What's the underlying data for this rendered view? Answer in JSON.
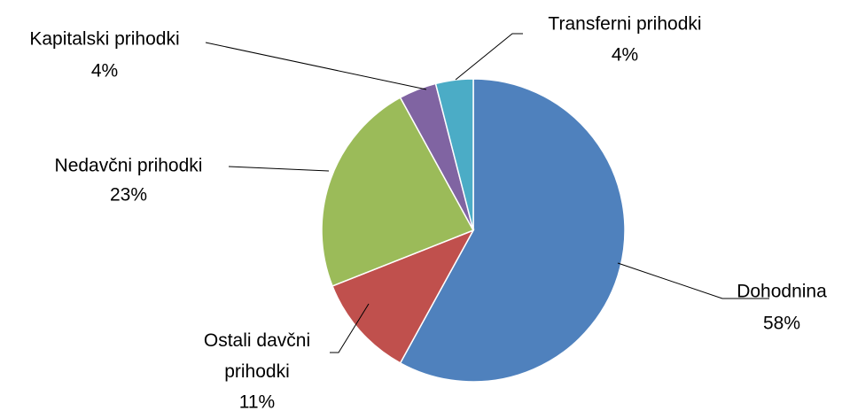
{
  "chart_data": {
    "type": "pie",
    "categories": [
      "Dohodnina",
      "Ostali davčni prihodki",
      "Nedavčni prihodki",
      "Kapitalski prihodki",
      "Transferni prihodki"
    ],
    "values": [
      58,
      11,
      23,
      4,
      4
    ],
    "value_labels": [
      "58%",
      "11%",
      "23%",
      "4%",
      "4%"
    ],
    "colors": [
      "#4f81bd",
      "#c0504d",
      "#9bbb59",
      "#8064a2",
      "#4bacc6"
    ]
  }
}
